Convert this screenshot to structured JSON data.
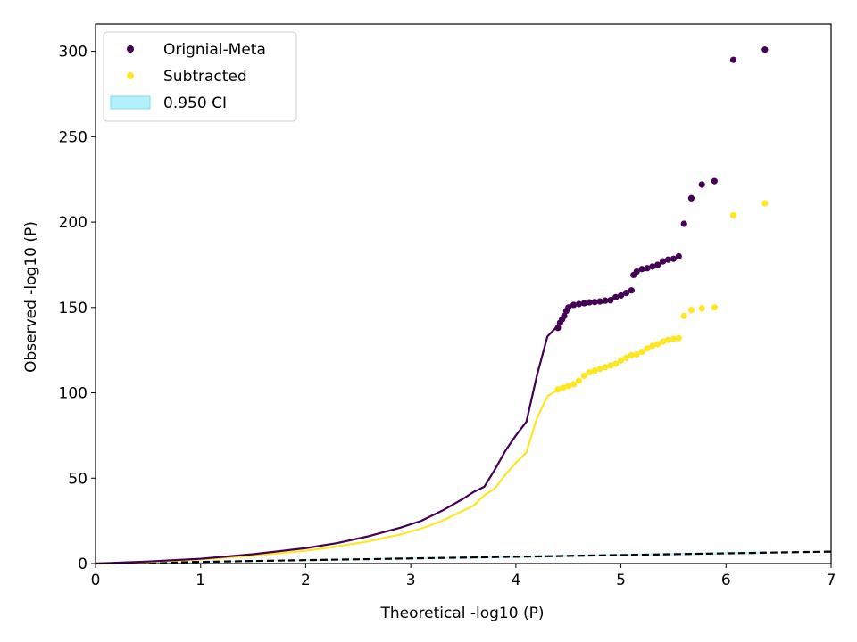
{
  "chart_data": {
    "type": "scatter",
    "xlabel": "Theoretical -log10 (P)",
    "ylabel": "Observed -log10 (P)",
    "xlim": [
      0,
      7
    ],
    "ylim": [
      0,
      316
    ],
    "xticks": [
      0,
      1,
      2,
      3,
      4,
      5,
      6,
      7
    ],
    "yticks": [
      0,
      50,
      100,
      150,
      200,
      250,
      300
    ],
    "grid": false,
    "legend_position": "top-left",
    "legend": [
      {
        "label": "Orignial-Meta",
        "kind": "marker",
        "color": "#440154"
      },
      {
        "label": "Subtracted",
        "kind": "marker",
        "color": "#fde725"
      },
      {
        "label": "0.950 CI",
        "kind": "patch",
        "color": "#b3f0fb"
      }
    ],
    "reference_line": {
      "x": [
        0,
        7
      ],
      "y": [
        0,
        7
      ],
      "color": "#000000",
      "style": "dashed"
    },
    "ci_band": {
      "x": [
        0,
        1,
        2,
        3,
        4,
        5,
        6,
        6.37
      ],
      "lower": [
        0,
        0.7,
        1.6,
        2.5,
        3.4,
        4.3,
        5.2,
        5.5
      ],
      "upper": [
        0,
        1.3,
        2.4,
        3.5,
        4.6,
        5.7,
        6.8,
        7.2
      ],
      "color": "#b3f0fb"
    },
    "series": [
      {
        "name": "Orignial-Meta",
        "color": "#440154",
        "line": [
          [
            0,
            0
          ],
          [
            0.5,
            1.2
          ],
          [
            1,
            2.8
          ],
          [
            1.5,
            5.5
          ],
          [
            2,
            9
          ],
          [
            2.3,
            12
          ],
          [
            2.6,
            16
          ],
          [
            2.9,
            21
          ],
          [
            3.1,
            25
          ],
          [
            3.3,
            31
          ],
          [
            3.5,
            38
          ],
          [
            3.6,
            42
          ],
          [
            3.7,
            45
          ],
          [
            3.8,
            55
          ],
          [
            3.9,
            66
          ],
          [
            4.0,
            75
          ],
          [
            4.1,
            83
          ],
          [
            4.2,
            110
          ],
          [
            4.3,
            133
          ],
          [
            4.38,
            138
          ]
        ],
        "points": [
          [
            4.4,
            138
          ],
          [
            4.42,
            141
          ],
          [
            4.44,
            143
          ],
          [
            4.46,
            145
          ],
          [
            4.48,
            148
          ],
          [
            4.5,
            150
          ],
          [
            4.55,
            151.5
          ],
          [
            4.6,
            152
          ],
          [
            4.65,
            152.5
          ],
          [
            4.7,
            153
          ],
          [
            4.75,
            153.2
          ],
          [
            4.8,
            153.5
          ],
          [
            4.85,
            154
          ],
          [
            4.9,
            154.2
          ],
          [
            4.95,
            156
          ],
          [
            5.0,
            157
          ],
          [
            5.05,
            158.5
          ],
          [
            5.1,
            160
          ],
          [
            5.12,
            169
          ],
          [
            5.15,
            171
          ],
          [
            5.2,
            172.5
          ],
          [
            5.25,
            173
          ],
          [
            5.3,
            174
          ],
          [
            5.35,
            175
          ],
          [
            5.4,
            177
          ],
          [
            5.45,
            178
          ],
          [
            5.5,
            178.5
          ],
          [
            5.55,
            180
          ],
          [
            5.6,
            199
          ],
          [
            5.67,
            214
          ],
          [
            5.77,
            222
          ],
          [
            5.89,
            224
          ],
          [
            6.07,
            295
          ],
          [
            6.37,
            301
          ]
        ]
      },
      {
        "name": "Subtracted",
        "color": "#fde725",
        "line": [
          [
            0,
            0
          ],
          [
            0.5,
            1
          ],
          [
            1,
            2.4
          ],
          [
            1.5,
            4.6
          ],
          [
            2,
            7.5
          ],
          [
            2.3,
            10
          ],
          [
            2.6,
            13
          ],
          [
            2.9,
            17
          ],
          [
            3.1,
            20.5
          ],
          [
            3.3,
            25
          ],
          [
            3.5,
            31
          ],
          [
            3.6,
            34
          ],
          [
            3.7,
            40
          ],
          [
            3.8,
            44
          ],
          [
            3.9,
            52
          ],
          [
            4.0,
            59
          ],
          [
            4.1,
            65
          ],
          [
            4.2,
            85
          ],
          [
            4.3,
            98
          ],
          [
            4.38,
            101
          ]
        ],
        "points": [
          [
            4.4,
            102
          ],
          [
            4.45,
            103
          ],
          [
            4.5,
            104
          ],
          [
            4.55,
            105
          ],
          [
            4.6,
            107
          ],
          [
            4.65,
            110
          ],
          [
            4.7,
            112
          ],
          [
            4.75,
            113
          ],
          [
            4.8,
            114
          ],
          [
            4.85,
            115
          ],
          [
            4.9,
            116
          ],
          [
            4.95,
            117
          ],
          [
            5.0,
            119
          ],
          [
            5.05,
            120.5
          ],
          [
            5.1,
            122
          ],
          [
            5.15,
            122.5
          ],
          [
            5.2,
            124
          ],
          [
            5.25,
            126
          ],
          [
            5.3,
            127.5
          ],
          [
            5.35,
            128.5
          ],
          [
            5.4,
            130
          ],
          [
            5.45,
            131
          ],
          [
            5.5,
            131.5
          ],
          [
            5.55,
            132
          ],
          [
            5.6,
            145
          ],
          [
            5.67,
            148.5
          ],
          [
            5.77,
            149.5
          ],
          [
            5.89,
            150
          ],
          [
            6.07,
            204
          ],
          [
            6.37,
            211
          ]
        ]
      }
    ]
  }
}
